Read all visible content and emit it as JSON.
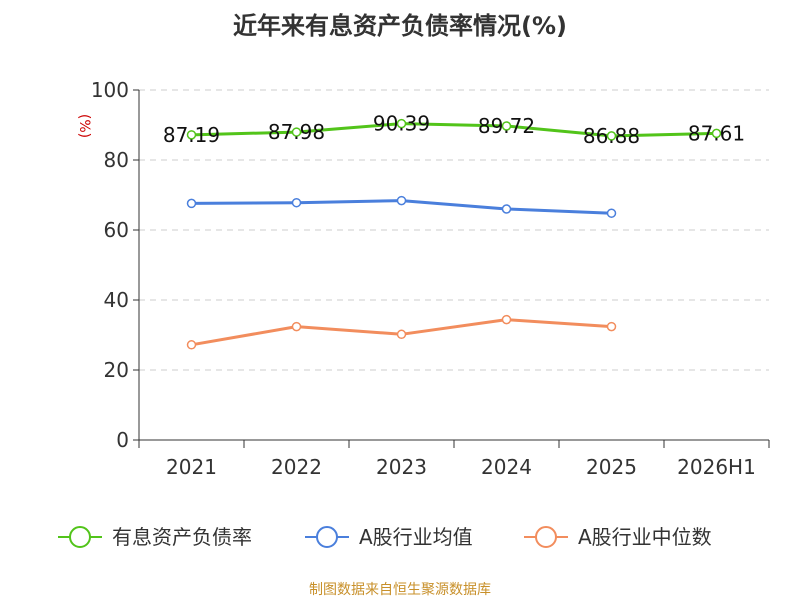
{
  "colors": {
    "series": [
      "#52c41a",
      "#4a7fdc",
      "#f28d5d"
    ],
    "grid": "#cccccc",
    "axis": "#333333",
    "source": "#c8902a",
    "ylabel": "#cc0000"
  },
  "chart_data": {
    "type": "line",
    "title": "近年来有息资产负债率情况(%)",
    "ylabel": "(%)",
    "xlabel": "",
    "categories": [
      "2021",
      "2022",
      "2023",
      "2024",
      "2025",
      "2026H1"
    ],
    "ylim": [
      0,
      100
    ],
    "yticks": [
      0,
      20,
      40,
      60,
      80,
      100
    ],
    "grid": true,
    "legend_position": "bottom",
    "series": [
      {
        "name": "有息资产负债率",
        "values": [
          87.19,
          87.98,
          90.39,
          89.72,
          86.88,
          87.61
        ],
        "labels": [
          "87.19",
          "87.98",
          "90.39",
          "89.72",
          "86.88",
          "87.61"
        ]
      },
      {
        "name": "A股行业均值",
        "values": [
          67.6,
          67.8,
          68.4,
          66.0,
          64.8,
          null
        ]
      },
      {
        "name": "A股行业中位数",
        "values": [
          27.2,
          32.4,
          30.2,
          34.4,
          32.4,
          null
        ]
      }
    ],
    "source": "制图数据来自恒生聚源数据库"
  }
}
